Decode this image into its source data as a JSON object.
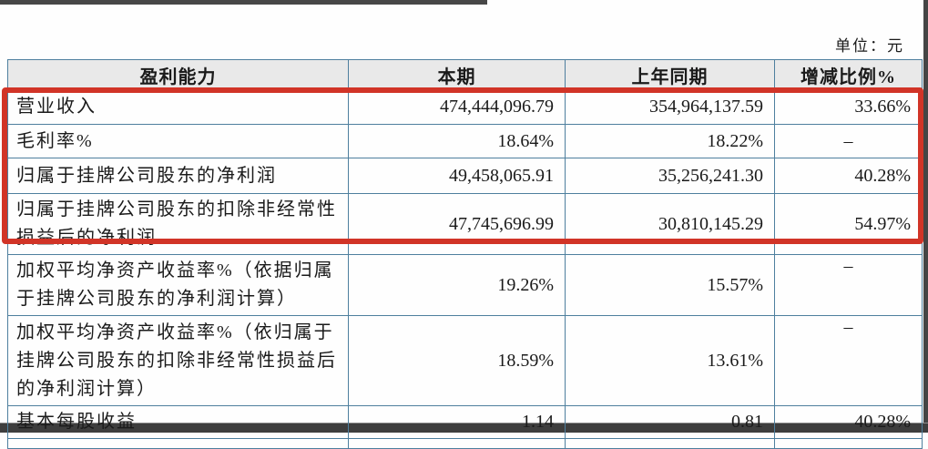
{
  "page": {
    "unit_label": "单位：元"
  },
  "colors": {
    "table_border": "#4e7f9e",
    "header_background": "#e9e9e9",
    "highlight_box": "#d13427",
    "edge_bars": "#454545",
    "text": "#1a1a1a"
  },
  "highlight": {
    "description": "red annotation box around first four data rows"
  },
  "table": {
    "headers": [
      "盈利能力",
      "本期",
      "上年同期",
      "增减比例%"
    ],
    "rows": [
      {
        "label": "营业收入",
        "current": "474,444,096.79",
        "prior": "354,964,137.59",
        "change": "33.66%"
      },
      {
        "label": "毛利率%",
        "current": "18.64%",
        "prior": "18.22%",
        "change": "–"
      },
      {
        "label": "归属于挂牌公司股东的净利润",
        "current": "49,458,065.91",
        "prior": "35,256,241.30",
        "change": "40.28%"
      },
      {
        "label": "归属于挂牌公司股东的扣除非经常性损益后的净利润",
        "current": "47,745,696.99",
        "prior": "30,810,145.29",
        "change": "54.97%"
      },
      {
        "label": "加权平均净资产收益率%（依据归属于挂牌公司股东的净利润计算）",
        "current": "19.26%",
        "prior": "15.57%",
        "change": "–"
      },
      {
        "label": "加权平均净资产收益率%（依归属于挂牌公司股东的扣除非经常性损益后的净利润计算）",
        "current": "18.59%",
        "prior": "13.61%",
        "change": "–"
      },
      {
        "label": "基本每股收益",
        "current": "1.14",
        "prior": "0.81",
        "change": "40.28%"
      }
    ]
  }
}
